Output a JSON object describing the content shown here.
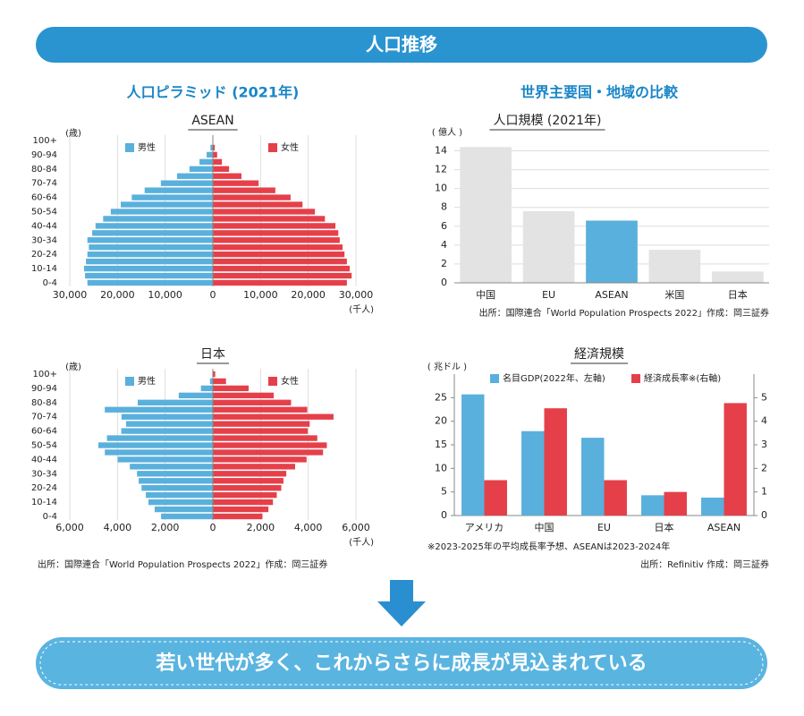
{
  "header": "人口推移",
  "sections": [
    "人口ピラミッド (2021年)",
    "世界主要国・地域の比較"
  ],
  "chart_data": [
    {
      "type": "pyramid",
      "title": "ASEAN",
      "y_label": "(歳)",
      "x_label": "(千人)",
      "categories": [
        "0-4",
        null,
        "10-14",
        null,
        "20-24",
        null,
        "30-34",
        null,
        "40-44",
        null,
        "50-54",
        null,
        "60-64",
        null,
        "70-74",
        null,
        "80-84",
        null,
        "90-94",
        null,
        "100+"
      ],
      "series": [
        {
          "name": "男性",
          "color": "#5ab0dc",
          "values": [
            26300,
            26800,
            27000,
            26600,
            26300,
            26000,
            26300,
            25300,
            24600,
            23000,
            21400,
            19300,
            17000,
            14300,
            10900,
            7500,
            4900,
            2800,
            1300,
            500,
            100
          ]
        },
        {
          "name": "女性",
          "color": "#e5404a",
          "values": [
            28100,
            29100,
            28700,
            28100,
            27600,
            27200,
            26600,
            26300,
            25700,
            23500,
            21400,
            18800,
            16300,
            13100,
            9600,
            6000,
            3400,
            1900,
            900,
            400,
            100
          ]
        }
      ],
      "xlim": [
        -30000,
        30000
      ],
      "xticks": [
        {
          "value": -30000,
          "label": "30,000"
        },
        {
          "value": -20000,
          "label": "20,000"
        },
        {
          "value": -10000,
          "label": "10,000"
        },
        0,
        {
          "value": 10000,
          "label": "10,000"
        },
        {
          "value": 20000,
          "label": "20,000"
        },
        {
          "value": 30000,
          "label": "30,000"
        }
      ],
      "grid": true
    },
    {
      "type": "pyramid",
      "title": "日本",
      "y_label": "(歳)",
      "x_label": "(千人)",
      "categories": [
        "0-4",
        null,
        "10-14",
        null,
        "20-24",
        null,
        "30-34",
        null,
        "40-44",
        null,
        "50-54",
        null,
        "60-64",
        null,
        "70-74",
        null,
        "80-84",
        null,
        "90-94",
        null,
        "100+"
      ],
      "series": [
        {
          "name": "男性",
          "color": "#5ab0dc",
          "values": [
            2170,
            2440,
            2700,
            2810,
            2990,
            3110,
            3180,
            3480,
            3990,
            4530,
            4800,
            4440,
            3840,
            3640,
            3830,
            4530,
            3150,
            1430,
            500,
            120,
            20
          ]
        },
        {
          "name": "女性",
          "color": "#e5404a",
          "values": [
            2080,
            2330,
            2520,
            2680,
            2870,
            2960,
            3080,
            3450,
            3930,
            4620,
            4780,
            4380,
            3980,
            4060,
            5060,
            3960,
            3280,
            2550,
            1500,
            550,
            100
          ]
        }
      ],
      "xlim": [
        -6000,
        6000
      ],
      "xticks": [
        {
          "value": -6000,
          "label": "6,000"
        },
        {
          "value": -4000,
          "label": "4,000"
        },
        {
          "value": -2000,
          "label": "2,000"
        },
        0,
        {
          "value": 2000,
          "label": "2,000"
        },
        {
          "value": 4000,
          "label": "4,000"
        },
        {
          "value": 6000,
          "label": "6,000"
        }
      ],
      "grid": true,
      "source": "出所：国際連合「World Population Prospects 2022」作成：岡三証券"
    },
    {
      "type": "bar",
      "title": "人口規模 (2021年)",
      "y_label": "( 億人 )",
      "categories": [
        "中国",
        "EU",
        "ASEAN",
        "米国",
        "日本"
      ],
      "values": [
        14.4,
        7.6,
        6.6,
        3.5,
        1.2
      ],
      "colors": [
        "#e3e3e3",
        "#e3e3e3",
        "#5ab0dc",
        "#e3e3e3",
        "#e3e3e3"
      ],
      "ylim": [
        0,
        15
      ],
      "yticks": [
        0,
        2,
        4,
        6,
        8,
        10,
        12,
        14
      ],
      "grid": true,
      "source": "出所：国際連合「World Population Prospects 2022」作成：岡三証券"
    },
    {
      "type": "dual_bar",
      "title": "経済規模",
      "y_label": "( 兆ドル )",
      "categories": [
        "アメリカ",
        "中国",
        "EU",
        "日本",
        "ASEAN"
      ],
      "series": [
        {
          "name": "名目GDP(2022年、左軸)",
          "color": "#5ab0dc",
          "values": [
            25.7,
            17.9,
            16.5,
            4.3,
            3.8
          ]
        },
        {
          "name": "経済成長率※(右軸)",
          "color": "#e5404a",
          "values": [
            1.5,
            4.55,
            1.5,
            1.0,
            4.77
          ],
          "axis": "y2"
        }
      ],
      "ylim": [
        0,
        30
      ],
      "yticks": [
        0,
        5,
        10,
        15,
        20,
        25
      ],
      "y2lim": [
        0,
        6
      ],
      "y2ticks": [
        0,
        1,
        2,
        3,
        4,
        5
      ],
      "grid": false,
      "note": "※2023-2025年の平均成長率予想、ASEANは2023-2024年",
      "source": "出所：Refinitiv 作成：岡三証券"
    }
  ],
  "conclusion": "若い世代が多く、これからさらに成長が見込まれている"
}
